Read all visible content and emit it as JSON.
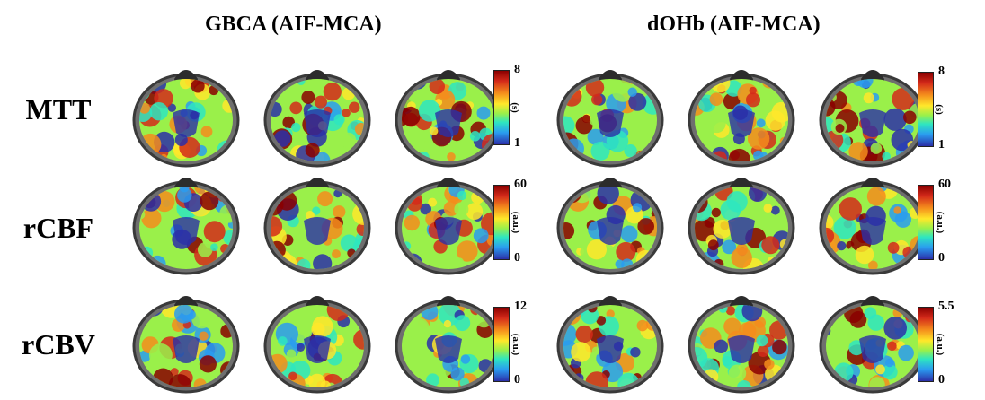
{
  "column_groups": [
    "GBCA (AIF-MCA)",
    "dOHb (AIF-MCA)"
  ],
  "rows": [
    {
      "label": "MTT",
      "scales": [
        {
          "max": "8",
          "min": "1",
          "unit": "(s)"
        },
        {
          "max": "8",
          "min": "1",
          "unit": "(s)"
        }
      ]
    },
    {
      "label": "rCBF",
      "scales": [
        {
          "max": "60",
          "min": "0",
          "unit": "(a.u.)"
        },
        {
          "max": "60",
          "min": "0",
          "unit": "(a.u.)"
        }
      ]
    },
    {
      "label": "rCBV",
      "scales": [
        {
          "max": "12",
          "min": "0",
          "unit": "(a.u.)"
        },
        {
          "max": "5.5",
          "min": "0",
          "unit": "(a.u.)"
        }
      ]
    }
  ],
  "colormap": [
    "#8a0000",
    "#d42a1a",
    "#f48c1c",
    "#ffe82a",
    "#9af04a",
    "#2ee6c0",
    "#2a9cf0",
    "#2b2fa8"
  ]
}
